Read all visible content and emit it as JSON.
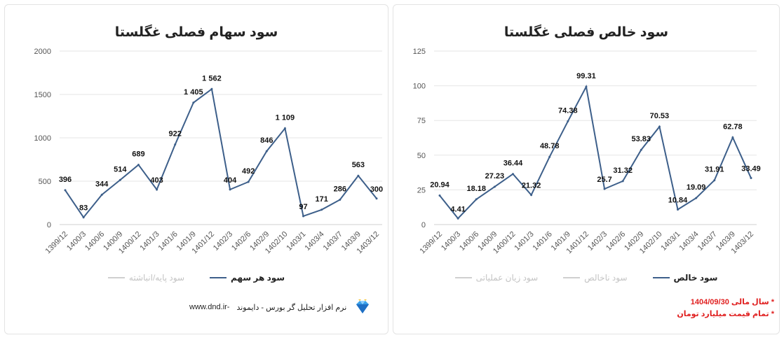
{
  "chart_data": [
    {
      "type": "line",
      "title": "سود سهام فصلی غگلستا",
      "categories": [
        "1399/12",
        "1400/3",
        "1400/6",
        "1400/9",
        "1400/12",
        "1401/3",
        "1401/6",
        "1401/9",
        "1401/12",
        "1402/3",
        "1402/6",
        "1402/9",
        "1402/10",
        "1403/1",
        "1403/4",
        "1403/7",
        "1403/9",
        "1403/12"
      ],
      "series": [
        {
          "name": "سود هر سهم",
          "values": [
            396,
            83,
            344,
            514,
            689,
            403,
            922,
            1405,
            1562,
            404,
            492,
            846,
            1109,
            97,
            171,
            286,
            563,
            300
          ],
          "labels": [
            "396",
            "83",
            "344",
            "514",
            "689",
            "403",
            "922",
            "1 405",
            "1 562",
            "404",
            "492",
            "846",
            "1 109",
            "97",
            "171",
            "286",
            "563",
            "300"
          ]
        }
      ],
      "ylim": [
        0,
        2000
      ],
      "yticks": [
        "0",
        "500",
        "1000",
        "1500",
        "2000"
      ],
      "ytick_values": [
        0,
        500,
        1000,
        1500,
        2000
      ],
      "legend": [
        {
          "label": "سود هر سهم",
          "color": "#3d5f8a",
          "active": true
        },
        {
          "label": "سود پایه/انباشته",
          "color": "#cfcfcf",
          "active": false
        }
      ]
    },
    {
      "type": "line",
      "title": "سود خالص فصلی غگلستا",
      "categories": [
        "1399/12",
        "1400/3",
        "1400/6",
        "1400/9",
        "1400/12",
        "1401/3",
        "1401/6",
        "1401/9",
        "1401/12",
        "1402/3",
        "1402/6",
        "1402/9",
        "1402/10",
        "1403/1",
        "1403/4",
        "1403/7",
        "1403/9",
        "1403/12"
      ],
      "series": [
        {
          "name": "سود خالص",
          "values": [
            20.94,
            4.41,
            18.18,
            27.23,
            36.44,
            21.32,
            48.78,
            74.38,
            99.31,
            25.7,
            31.32,
            53.83,
            70.53,
            10.84,
            19.09,
            31.91,
            62.78,
            33.49
          ],
          "labels": [
            "20.94",
            "4.41",
            "18.18",
            "27.23",
            "36.44",
            "21.32",
            "48.78",
            "74.38",
            "99.31",
            "25.7",
            "31.32",
            "53.83",
            "70.53",
            "10.84",
            "19.09",
            "31.91",
            "62.78",
            "33.49"
          ]
        }
      ],
      "ylim": [
        0,
        125
      ],
      "yticks": [
        "0",
        "25",
        "50",
        "75",
        "100",
        "125"
      ],
      "ytick_values": [
        0,
        25,
        50,
        75,
        100,
        125
      ],
      "legend": [
        {
          "label": "سود خالص",
          "color": "#3d5f8a",
          "active": true
        },
        {
          "label": "سود ناخالص",
          "color": "#cfcfcf",
          "active": false
        },
        {
          "label": "سود زیان عملیاتی",
          "color": "#cfcfcf",
          "active": false
        }
      ]
    }
  ],
  "footer": {
    "site": "www.dnd.ir-",
    "brand": "نرم افزار تحلیل گر بورس - دایموند"
  },
  "notes": [
    "* سال مالی 1404/09/30",
    "* تمام قیمت میلیارد تومان"
  ],
  "colors": {
    "line": "#3d5f8a",
    "grid": "#e6e6e6",
    "note": "#e02020"
  }
}
